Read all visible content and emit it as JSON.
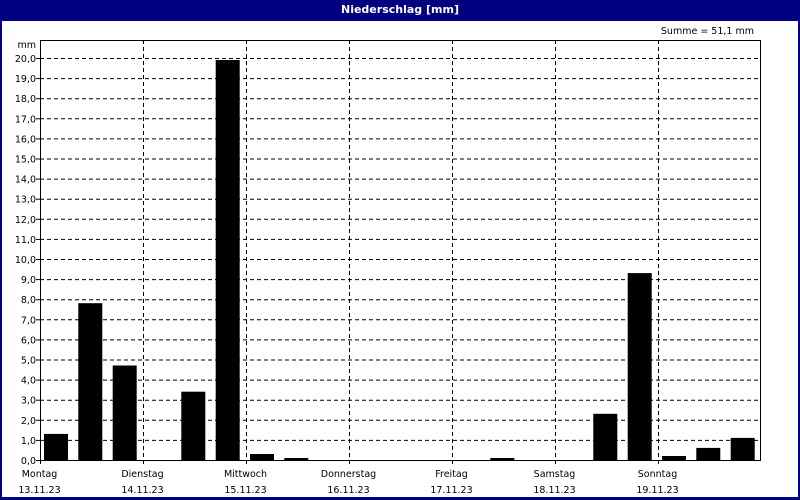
{
  "window": {
    "title": "Niederschlag [mm]"
  },
  "colors": {
    "titlebar": "#000080",
    "bar": "#000000",
    "grid": "#000000",
    "background": "#ffffff"
  },
  "chart_data": {
    "type": "bar",
    "title": "Niederschlag [mm]",
    "annotation": "Summe = 51,1 mm",
    "ylabel": "mm",
    "ylim": [
      0,
      20
    ],
    "yticks": [
      "0,0",
      "1,0",
      "2,0",
      "3,0",
      "4,0",
      "5,0",
      "6,0",
      "7,0",
      "8,0",
      "9,0",
      "10,0",
      "11,0",
      "12,0",
      "13,0",
      "14,0",
      "15,0",
      "16,0",
      "17,0",
      "18,0",
      "19,0",
      "20,0"
    ],
    "grid": true,
    "days": [
      {
        "weekday": "Montag",
        "date": "13.11.23"
      },
      {
        "weekday": "Dienstag",
        "date": "14.11.23"
      },
      {
        "weekday": "Mittwoch",
        "date": "15.11.23"
      },
      {
        "weekday": "Donnerstag",
        "date": "16.11.23"
      },
      {
        "weekday": "Freitag",
        "date": "17.11.23"
      },
      {
        "weekday": "Samstag",
        "date": "18.11.23"
      },
      {
        "weekday": "Sonntag",
        "date": "19.11.23"
      }
    ],
    "bars_per_day": 3,
    "values": [
      1.3,
      7.8,
      4.7,
      0.0,
      3.4,
      19.9,
      0.3,
      0.1,
      0.0,
      0.0,
      0.0,
      0.0,
      0.0,
      0.1,
      0.0,
      0.0,
      2.3,
      9.3,
      0.2,
      0.6,
      1.1
    ]
  }
}
